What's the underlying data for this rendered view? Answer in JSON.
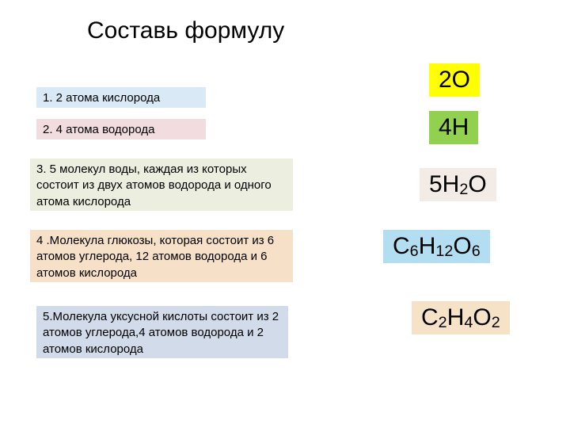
{
  "title": "Составь формулу",
  "questions": {
    "q1": "1. 2 атома кислорода",
    "q2": "2. 4 атома водорода",
    "q3": "3. 5 молекул воды, каждая из которых состоит из двух атомов водорода и одного  атома  кислорода",
    "q4": "4 .Молекула глюкозы, которая состоит из 6 атомов углерода, 12 атомов водорода и 6 атомов кислорода",
    "q5": "5.Молекула уксусной кислоты состоит из 2 атомов углерода,4 атомов водорода и 2 атомов кислорода"
  },
  "formulas": {
    "f1": [
      [
        "2O",
        false
      ]
    ],
    "f2": [
      [
        "4H",
        false
      ]
    ],
    "f3": [
      [
        "5H",
        false
      ],
      [
        "2",
        true
      ],
      [
        "O",
        false
      ]
    ],
    "f4": [
      [
        "C",
        false
      ],
      [
        "6",
        true
      ],
      [
        "H",
        false
      ],
      [
        "12",
        true
      ],
      [
        "O",
        false
      ],
      [
        "6",
        true
      ]
    ],
    "f5": [
      [
        "C",
        false
      ],
      [
        "2",
        true
      ],
      [
        "H",
        false
      ],
      [
        "4",
        true
      ],
      [
        "O",
        false
      ],
      [
        "2",
        true
      ]
    ]
  },
  "colors": {
    "bg": "#ffffff",
    "q1": "#d9eaf6",
    "q2": "#f1dce0",
    "q3": "#eceee0",
    "q4": "#f6e0c7",
    "q5": "#d2dbe9",
    "f1": "#ffff00",
    "f2": "#92d050",
    "f3": "#f3ebe5",
    "f4": "#b3def2",
    "f5": "#f6e3c7"
  },
  "layout": {
    "title_fontsize": 30,
    "question_fontsize": 15,
    "formula_fontsize": 30
  }
}
